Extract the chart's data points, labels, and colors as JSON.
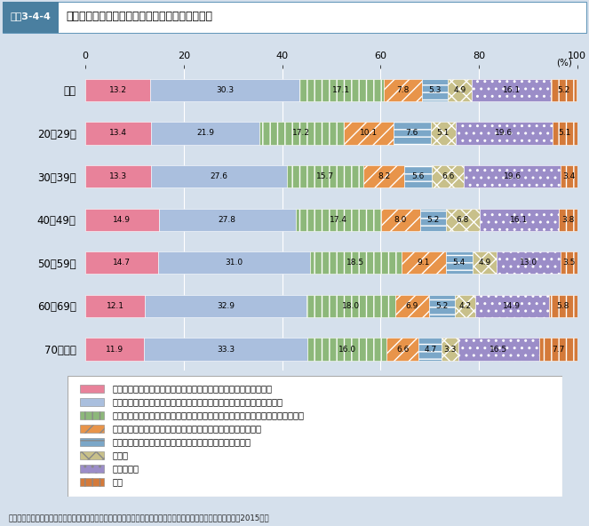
{
  "title_tag": "図表3-4-4",
  "title_main": "今後の社会保障の負担と給付の在り方（年齢別）",
  "categories": [
    "総数",
    "20〜29歳",
    "30〜39歳",
    "40〜49歳",
    "50〜59歳",
    "60〜69歳",
    "70歳以上"
  ],
  "series": [
    {
      "label": "社会保障の給付水準を引き上げ、そのための負担増もやむを得ない",
      "color": "#E8829A",
      "hatch": "",
      "values": [
        13.2,
        13.4,
        13.3,
        14.9,
        14.7,
        12.1,
        11.9
      ]
    },
    {
      "label": "社会保障の給付水準を維持し、少子高齢化による負担増はやむを得ない",
      "color": "#AABFDE",
      "hatch": "",
      "values": [
        30.3,
        21.9,
        27.6,
        27.8,
        31.0,
        32.9,
        33.3
      ]
    },
    {
      "label": "社会保障の給付水準をある程度引き下げつつ、ある程度の負担増もやむを得ない",
      "color": "#8DB87A",
      "hatch": "||",
      "values": [
        17.1,
        17.2,
        15.7,
        17.4,
        18.5,
        18.0,
        16.0
      ]
    },
    {
      "label": "社会保障の給付水準を引き下げ、従来どおりの負担とするべき",
      "color": "#E8944A",
      "hatch": "//",
      "values": [
        7.8,
        10.1,
        8.2,
        8.0,
        9.1,
        6.9,
        6.6
      ]
    },
    {
      "label": "社会保障の給付水準を大幅に引き下げ、負担を減らすべき",
      "color": "#7BA7C8",
      "hatch": "--",
      "values": [
        5.3,
        7.6,
        5.6,
        5.2,
        5.4,
        5.2,
        4.7
      ]
    },
    {
      "label": "その他",
      "color": "#C8C08A",
      "hatch": "xx",
      "values": [
        4.9,
        5.1,
        6.6,
        6.8,
        4.9,
        4.2,
        3.3
      ]
    },
    {
      "label": "わからない",
      "color": "#9B8DC8",
      "hatch": "..",
      "values": [
        16.1,
        19.6,
        19.6,
        16.1,
        13.0,
        14.9,
        16.5
      ]
    },
    {
      "label": "不詳",
      "color": "#D47A3A",
      "hatch": "||",
      "values": [
        5.2,
        5.1,
        3.4,
        3.8,
        3.5,
        5.8,
        7.7
      ]
    }
  ],
  "xlim": [
    0,
    100
  ],
  "background_color": "#D5E0EC",
  "tag_bg_color": "#4A7FA0",
  "footer": "資料：厚生労働省政策統括官付政策評価官室「社会保障における公的・私的サービスに関する意識調査報告書」（2015年）"
}
